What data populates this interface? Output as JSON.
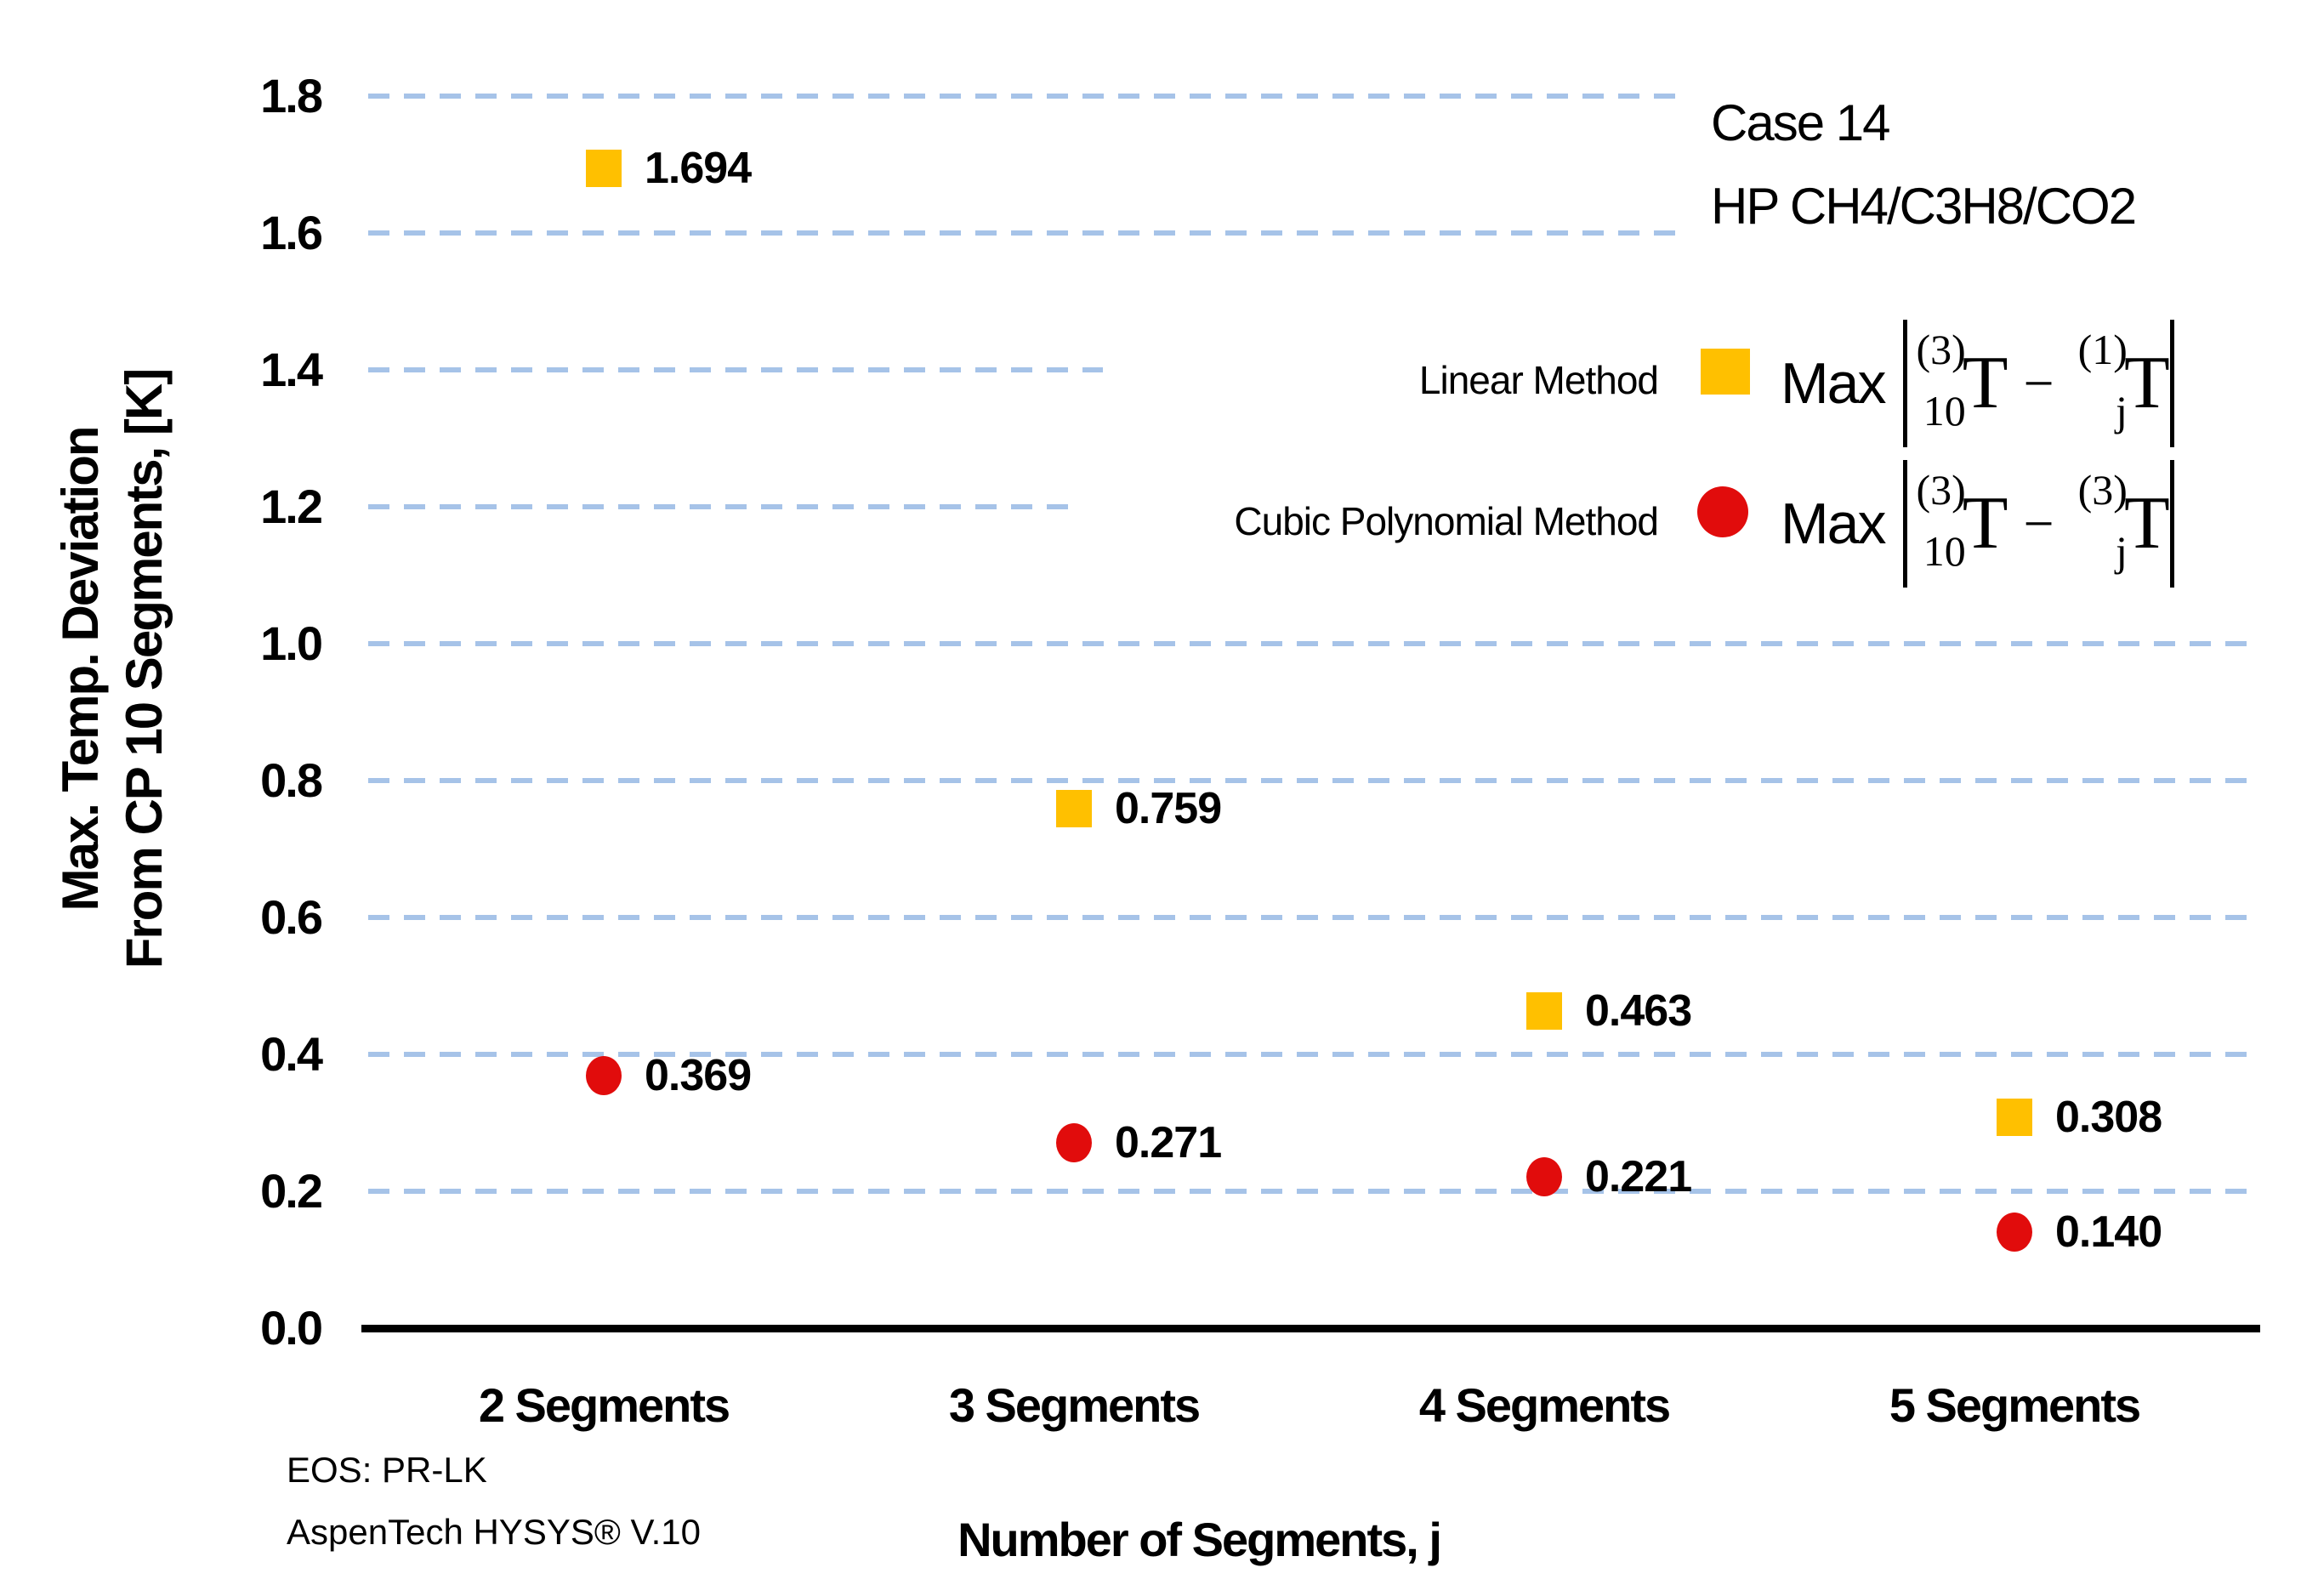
{
  "annotation": {
    "line1": "Case 14",
    "line2": "HP CH4/C3H8/CO2"
  },
  "y_axis": {
    "title_line1": "Max. Temp. Deviation",
    "title_line2": "From CP 10 Segments, [K]",
    "ticks": [
      "1.8",
      "1.6",
      "1.4",
      "1.2",
      "1.0",
      "0.8",
      "0.6",
      "0.4",
      "0.2",
      "0.0"
    ]
  },
  "x_axis": {
    "title": "Number of Segments, j",
    "categories": [
      "2 Segments",
      "3 Segments",
      "4 Segments",
      "5 Segments"
    ]
  },
  "legend": {
    "rows": [
      {
        "label": "Linear Method",
        "marker": "square",
        "color": "#FFC000",
        "formula": {
          "func": "Max",
          "sup1": "(3)",
          "sub1": "10",
          "base1": "T",
          "op": "−",
          "sup2": "(1)",
          "sub2": "j",
          "base2": "T"
        }
      },
      {
        "label": "Cubic Polynomial Method",
        "marker": "circle",
        "color": "#E10C0C",
        "formula": {
          "func": "Max",
          "sup1": "(3)",
          "sub1": "10",
          "base1": "T",
          "op": "−",
          "sup2": "(3)",
          "sub2": "j",
          "base2": "T"
        }
      }
    ]
  },
  "footnote": {
    "line1": "EOS: PR-LK",
    "line2": "AspenTech HYSYS® V.10"
  },
  "chart_data": {
    "type": "scatter",
    "categories": [
      "2 Segments",
      "3 Segments",
      "4 Segments",
      "5 Segments"
    ],
    "series": [
      {
        "name": "Linear Method",
        "marker": "square",
        "color": "#FFC000",
        "values": [
          1.694,
          0.759,
          0.463,
          0.308
        ]
      },
      {
        "name": "Cubic Polynomial Method",
        "marker": "circle",
        "color": "#E10C0C",
        "values": [
          0.369,
          0.271,
          0.221,
          0.14
        ]
      }
    ],
    "xlabel": "Number of Segments, j",
    "ylabel": "Max. Temp. Deviation From CP 10 Segments, [K]",
    "ylim": [
      0.0,
      1.8
    ],
    "ytick_step": 0.2,
    "grid": "horizontal-dashed",
    "gridline_color": "#A6C3E8",
    "value_labels": "3 decimals, right of marker",
    "legend_position": "upper-right",
    "annotations": [
      "Case 14",
      "HP CH4/C3H8/CO2",
      "EOS: PR-LK",
      "AspenTech HYSYS® V.10"
    ]
  }
}
